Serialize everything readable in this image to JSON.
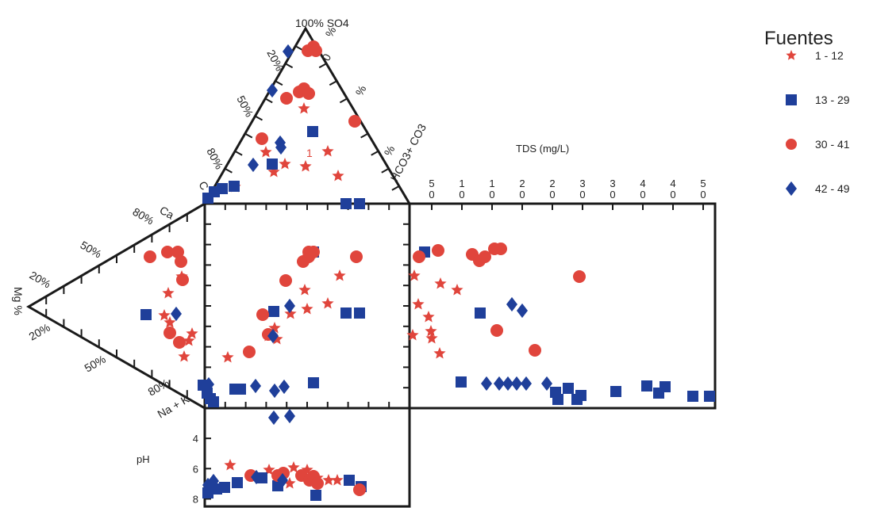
{
  "chart_data": {
    "type": "scatter",
    "legend": {
      "title": "Fuentes",
      "position": "top-right",
      "entries": [
        {
          "label": "1 - 12",
          "marker": "star",
          "color": "#e0453c"
        },
        {
          "label": "13 - 29",
          "marker": "square",
          "color": "#1f3f9a"
        },
        {
          "label": "30 - 41",
          "marker": "circle",
          "color": "#e0453c"
        },
        {
          "label": "42 - 49",
          "marker": "diamond",
          "color": "#1f3f9a"
        }
      ]
    },
    "top_triangle": {
      "apex_label": "100% SO4",
      "left_ticks": [
        "20%",
        "50%",
        "80%",
        "C"
      ],
      "right_ticks": [
        "0",
        "%",
        "%",
        "%"
      ],
      "right_axis_label": "HCO3+ CO3"
    },
    "left_triangle": {
      "apex_label": "Mg %",
      "upper_ticks": [
        "80%",
        "50%",
        "20%"
      ],
      "upper_axis_label": "Ca",
      "lower_ticks": [
        "20%",
        "50%",
        "80%"
      ],
      "lower_axis_label": "Na + K"
    },
    "tds_panel": {
      "xlabel": "TDS (mg/L)",
      "ticks": [
        "5",
        "1",
        "1",
        "2",
        "2",
        "3",
        "3",
        "4",
        "4",
        "5"
      ]
    },
    "ph_panel": {
      "ylabel": "pH",
      "ticks": [
        4,
        6,
        8
      ],
      "ylim": [
        2,
        8.5
      ]
    },
    "annotation": "1"
  }
}
